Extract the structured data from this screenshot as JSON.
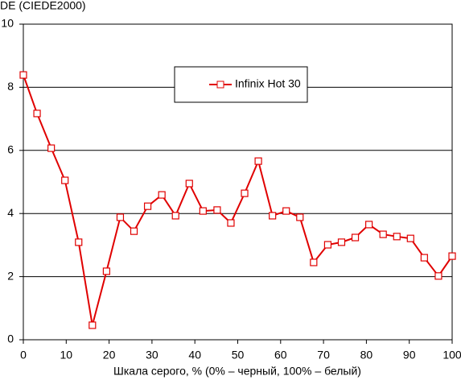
{
  "chart_data": {
    "type": "line",
    "y_label": "DE (CIEDE2000)",
    "x_label": "Шкала серого, % (0% – черный, 100% – белый)",
    "x": [
      0,
      3.2,
      6.5,
      9.7,
      12.9,
      16.1,
      19.4,
      22.6,
      25.8,
      29.0,
      32.3,
      35.5,
      38.7,
      41.9,
      45.2,
      48.4,
      51.6,
      54.8,
      58.1,
      61.3,
      64.5,
      67.7,
      71.0,
      74.2,
      77.4,
      80.6,
      83.9,
      87.1,
      90.3,
      93.5,
      96.8,
      100
    ],
    "series": [
      {
        "name": "Infinix Hot 30",
        "color": "#e00000",
        "values": [
          8.39,
          7.17,
          6.07,
          5.05,
          3.09,
          0.46,
          2.17,
          3.88,
          3.44,
          4.23,
          4.59,
          3.93,
          4.95,
          4.08,
          4.11,
          3.7,
          4.64,
          5.66,
          3.93,
          4.08,
          3.88,
          2.45,
          3.01,
          3.09,
          3.24,
          3.65,
          3.34,
          3.27,
          3.21,
          2.6,
          2.02,
          2.65
        ]
      }
    ],
    "xlim": [
      0,
      100
    ],
    "xticks": [
      0,
      10,
      20,
      30,
      40,
      50,
      60,
      70,
      80,
      90,
      100
    ],
    "ylim": [
      0,
      10
    ],
    "yticks": [
      0,
      2,
      4,
      6,
      8,
      10
    ],
    "grid": true
  }
}
